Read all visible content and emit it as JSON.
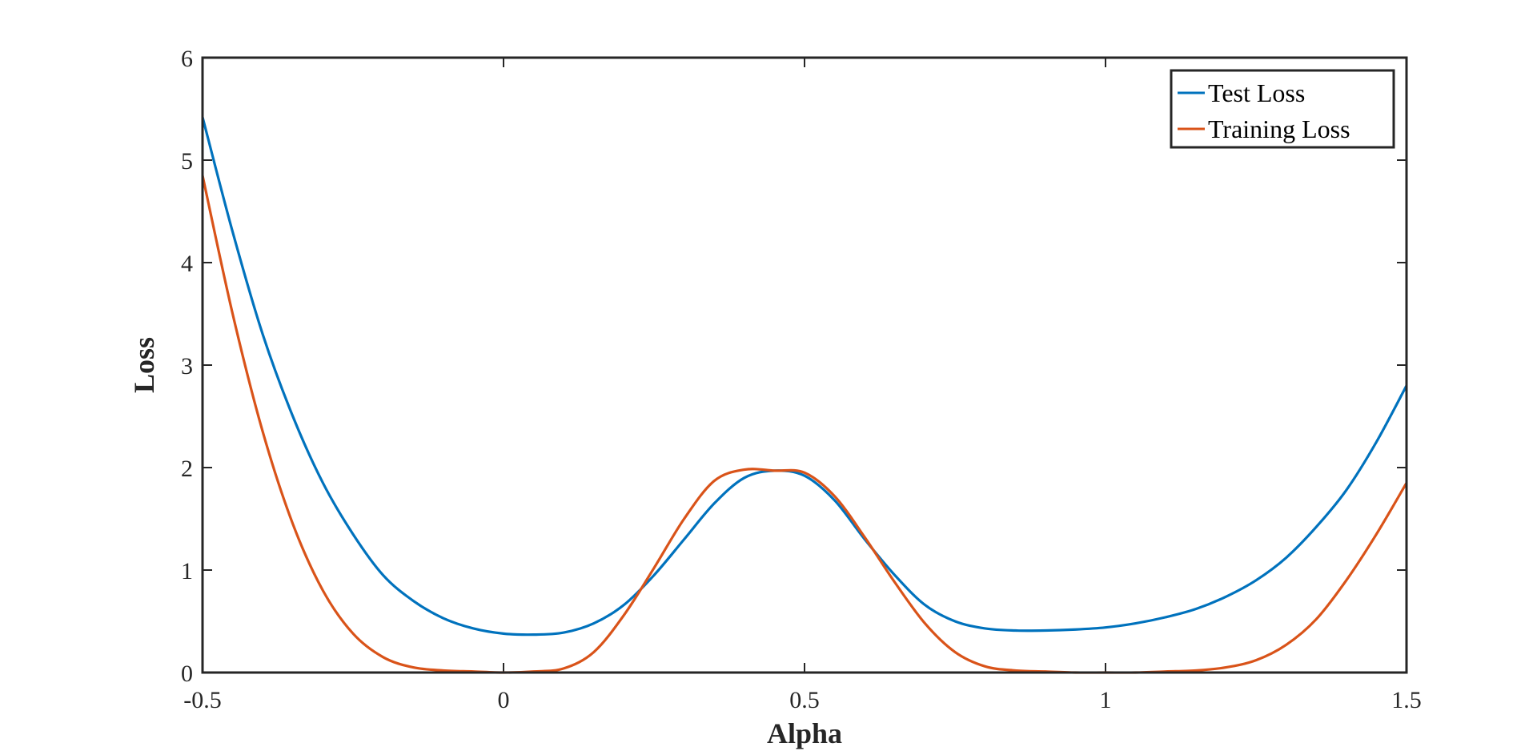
{
  "chart_data": {
    "type": "line",
    "title": "",
    "xlabel": "Alpha",
    "ylabel": "Loss",
    "xlim": [
      -0.5,
      1.5
    ],
    "ylim": [
      0,
      6
    ],
    "grid": false,
    "legend_position": "top-right",
    "x_ticks": [
      -0.5,
      0,
      0.5,
      1,
      1.5
    ],
    "x_tick_labels": [
      "-0.5",
      "0",
      "0.5",
      "1",
      "1.5"
    ],
    "y_ticks": [
      0,
      1,
      2,
      3,
      4,
      5,
      6
    ],
    "y_tick_labels": [
      "0",
      "1",
      "2",
      "3",
      "4",
      "5",
      "6"
    ],
    "x": [
      -0.5,
      -0.45,
      -0.4,
      -0.35,
      -0.3,
      -0.25,
      -0.2,
      -0.15,
      -0.1,
      -0.05,
      0,
      0.05,
      0.1,
      0.15,
      0.2,
      0.25,
      0.3,
      0.35,
      0.4,
      0.45,
      0.5,
      0.55,
      0.6,
      0.65,
      0.7,
      0.75,
      0.8,
      0.85,
      0.9,
      0.95,
      1.0,
      1.05,
      1.1,
      1.15,
      1.2,
      1.25,
      1.3,
      1.35,
      1.4,
      1.45,
      1.5
    ],
    "series": [
      {
        "name": "Test Loss",
        "color": "#0072BD",
        "values": [
          5.42,
          4.3,
          3.3,
          2.5,
          1.85,
          1.35,
          0.95,
          0.7,
          0.53,
          0.43,
          0.38,
          0.37,
          0.39,
          0.48,
          0.66,
          0.95,
          1.3,
          1.65,
          1.9,
          1.97,
          1.92,
          1.68,
          1.3,
          0.95,
          0.66,
          0.5,
          0.43,
          0.41,
          0.41,
          0.42,
          0.44,
          0.48,
          0.54,
          0.62,
          0.74,
          0.9,
          1.12,
          1.42,
          1.78,
          2.25,
          2.8
        ]
      },
      {
        "name": "Training Loss",
        "color": "#D95319",
        "values": [
          4.85,
          3.5,
          2.35,
          1.45,
          0.8,
          0.38,
          0.15,
          0.05,
          0.02,
          0.01,
          0.0,
          0.01,
          0.04,
          0.2,
          0.56,
          1.02,
          1.5,
          1.87,
          1.98,
          1.97,
          1.95,
          1.72,
          1.32,
          0.88,
          0.48,
          0.2,
          0.06,
          0.02,
          0.01,
          0.0,
          0.0,
          0.0,
          0.01,
          0.02,
          0.05,
          0.12,
          0.27,
          0.52,
          0.9,
          1.35,
          1.85
        ]
      }
    ]
  }
}
